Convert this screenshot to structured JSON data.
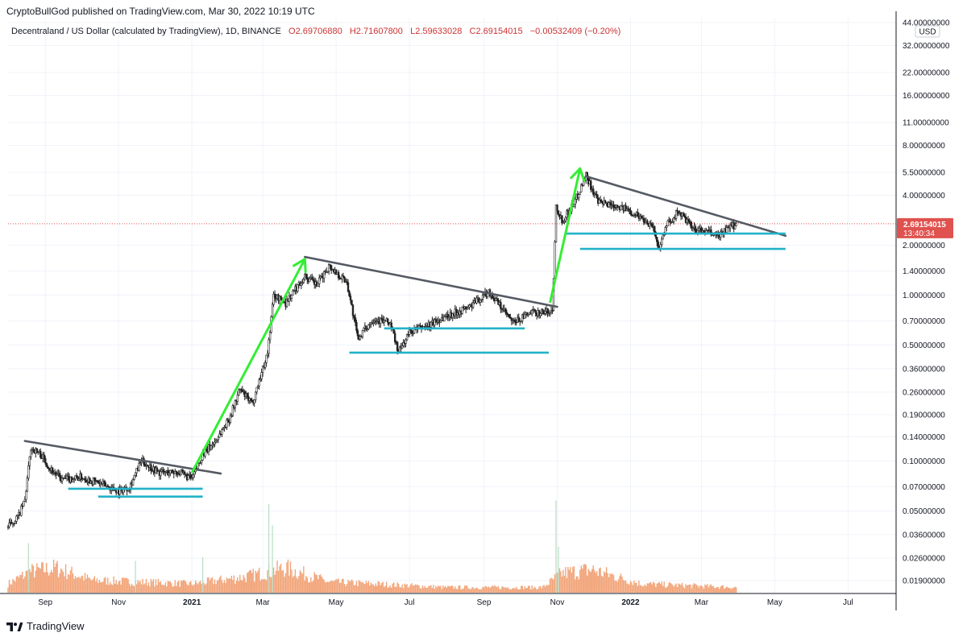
{
  "header": {
    "publisher": "CryptoBullGod published on TradingView.com, Mar 30, 2022 10:19 UTC"
  },
  "legend": {
    "symbol": "Decentraland / US Dollar (calculated by TradingView), 1D, BINANCE",
    "open": "O2.69706880",
    "high": "H2.71607800",
    "low": "L2.59633028",
    "close": "C2.69154015",
    "change": "−0.00532409 (−0.20%)"
  },
  "footer": {
    "brand": "TradingView"
  },
  "colors": {
    "candle": "#222222",
    "trendline": "#555a63",
    "support": "#22b2c9",
    "arrow": "#33ee33",
    "volume": "#f2a57a",
    "price_tag": "#e0524f",
    "price_line": "#e0524f"
  },
  "icons": {
    "logo": "tradingview-logo-icon"
  },
  "chart_data": {
    "type": "candlestick",
    "scale": "log",
    "currency": "USD",
    "last_price_label": "2.69154015",
    "countdown": "13:40:34",
    "y_ticks": [
      {
        "value": 44,
        "label": "44.00000000"
      },
      {
        "value": 32,
        "label": "32.00000000"
      },
      {
        "value": 22,
        "label": "22.00000000"
      },
      {
        "value": 16,
        "label": "16.00000000"
      },
      {
        "value": 11,
        "label": "11.00000000"
      },
      {
        "value": 8,
        "label": "8.00000000"
      },
      {
        "value": 5.5,
        "label": "5.50000000"
      },
      {
        "value": 4,
        "label": "4.00000000"
      },
      {
        "value": 2,
        "label": "2.00000000"
      },
      {
        "value": 1.4,
        "label": "1.40000000"
      },
      {
        "value": 1,
        "label": "1.00000000"
      },
      {
        "value": 0.7,
        "label": "0.70000000"
      },
      {
        "value": 0.5,
        "label": "0.50000000"
      },
      {
        "value": 0.36,
        "label": "0.36000000"
      },
      {
        "value": 0.26,
        "label": "0.26000000"
      },
      {
        "value": 0.19,
        "label": "0.19000000"
      },
      {
        "value": 0.14,
        "label": "0.14000000"
      },
      {
        "value": 0.1,
        "label": "0.10000000"
      },
      {
        "value": 0.07,
        "label": "0.07000000"
      },
      {
        "value": 0.05,
        "label": "0.05000000"
      },
      {
        "value": 0.036,
        "label": "0.03600000"
      },
      {
        "value": 0.026,
        "label": "0.02600000"
      },
      {
        "value": 0.019,
        "label": "0.01900000"
      }
    ],
    "x_ticks": [
      {
        "date": "2020-09-01",
        "label": "Sep",
        "bold": false
      },
      {
        "date": "2020-11-01",
        "label": "Nov",
        "bold": false
      },
      {
        "date": "2021-01-01",
        "label": "2021",
        "bold": true
      },
      {
        "date": "2021-03-01",
        "label": "Mar",
        "bold": false
      },
      {
        "date": "2021-05-01",
        "label": "May",
        "bold": false
      },
      {
        "date": "2021-07-01",
        "label": "Jul",
        "bold": false
      },
      {
        "date": "2021-09-01",
        "label": "Sep",
        "bold": false
      },
      {
        "date": "2021-11-01",
        "label": "Nov",
        "bold": false
      },
      {
        "date": "2022-01-01",
        "label": "2022",
        "bold": true
      },
      {
        "date": "2022-03-01",
        "label": "Mar",
        "bold": false
      },
      {
        "date": "2022-05-01",
        "label": "May",
        "bold": false
      },
      {
        "date": "2022-07-01",
        "label": "Jul",
        "bold": false
      }
    ],
    "x_range": [
      "2020-08-01",
      "2022-08-10"
    ],
    "price_path": [
      [
        "2020-08-01",
        0.04
      ],
      [
        "2020-08-10",
        0.047
      ],
      [
        "2020-08-15",
        0.058
      ],
      [
        "2020-08-20",
        0.12
      ],
      [
        "2020-08-28",
        0.11
      ],
      [
        "2020-09-05",
        0.09
      ],
      [
        "2020-09-15",
        0.077
      ],
      [
        "2020-10-01",
        0.08
      ],
      [
        "2020-10-15",
        0.074
      ],
      [
        "2020-11-01",
        0.066
      ],
      [
        "2020-11-10",
        0.07
      ],
      [
        "2020-11-20",
        0.1
      ],
      [
        "2020-12-05",
        0.085
      ],
      [
        "2020-12-20",
        0.086
      ],
      [
        "2021-01-01",
        0.078
      ],
      [
        "2021-01-10",
        0.11
      ],
      [
        "2021-01-20",
        0.13
      ],
      [
        "2021-02-01",
        0.18
      ],
      [
        "2021-02-10",
        0.27
      ],
      [
        "2021-02-20",
        0.22
      ],
      [
        "2021-03-05",
        0.45
      ],
      [
        "2021-03-10",
        1.0
      ],
      [
        "2021-03-20",
        0.9
      ],
      [
        "2021-04-05",
        1.3
      ],
      [
        "2021-04-15",
        1.15
      ],
      [
        "2021-04-25",
        1.5
      ],
      [
        "2021-05-10",
        1.2
      ],
      [
        "2021-05-19",
        0.55
      ],
      [
        "2021-06-01",
        0.72
      ],
      [
        "2021-06-15",
        0.68
      ],
      [
        "2021-06-22",
        0.45
      ],
      [
        "2021-07-01",
        0.6
      ],
      [
        "2021-07-15",
        0.65
      ],
      [
        "2021-08-01",
        0.75
      ],
      [
        "2021-08-20",
        0.85
      ],
      [
        "2021-09-05",
        1.05
      ],
      [
        "2021-09-15",
        0.85
      ],
      [
        "2021-09-25",
        0.68
      ],
      [
        "2021-10-10",
        0.78
      ],
      [
        "2021-10-28",
        0.8
      ],
      [
        "2021-10-31",
        3.5
      ],
      [
        "2021-11-05",
        2.8
      ],
      [
        "2021-11-15",
        3.6
      ],
      [
        "2021-11-25",
        5.3
      ],
      [
        "2021-12-05",
        3.6
      ],
      [
        "2021-12-20",
        3.5
      ],
      [
        "2022-01-05",
        3.1
      ],
      [
        "2022-01-20",
        2.6
      ],
      [
        "2022-01-24",
        1.9
      ],
      [
        "2022-02-01",
        2.7
      ],
      [
        "2022-02-10",
        3.2
      ],
      [
        "2022-02-22",
        2.5
      ],
      [
        "2022-03-05",
        2.4
      ],
      [
        "2022-03-15",
        2.3
      ],
      [
        "2022-03-30",
        2.69
      ]
    ],
    "volume_path": [
      [
        "2020-08-01",
        0.25
      ],
      [
        "2020-08-20",
        0.6
      ],
      [
        "2020-09-10",
        0.7
      ],
      [
        "2020-10-10",
        0.35
      ],
      [
        "2020-11-20",
        0.3
      ],
      [
        "2021-01-01",
        0.25
      ],
      [
        "2021-02-15",
        0.45
      ],
      [
        "2021-03-20",
        0.7
      ],
      [
        "2021-04-25",
        0.3
      ],
      [
        "2021-06-01",
        0.25
      ],
      [
        "2021-08-01",
        0.15
      ],
      [
        "2021-10-20",
        0.15
      ],
      [
        "2021-11-05",
        0.55
      ],
      [
        "2021-11-30",
        0.65
      ],
      [
        "2022-01-10",
        0.25
      ],
      [
        "2022-03-30",
        0.15
      ]
    ],
    "volume_spikes": [
      [
        "2020-08-18",
        1.4
      ],
      [
        "2020-11-15",
        0.9
      ],
      [
        "2021-01-10",
        1.0
      ],
      [
        "2021-03-09",
        1.9
      ],
      [
        "2021-03-06",
        2.5
      ],
      [
        "2021-10-31",
        2.6
      ],
      [
        "2021-11-02",
        1.3
      ]
    ],
    "trendlines": [
      {
        "from": [
          "2020-08-15",
          0.132
        ],
        "to": [
          "2021-01-25",
          0.084
        ]
      },
      {
        "from": [
          "2021-04-05",
          1.7
        ],
        "to": [
          "2021-11-01",
          0.85
        ]
      },
      {
        "from": [
          "2021-11-25",
          5.2
        ],
        "to": [
          "2022-05-10",
          2.28
        ]
      }
    ],
    "support_lines": [
      {
        "from": [
          "2020-09-20",
          0.068
        ],
        "to": [
          "2021-01-10",
          0.068
        ]
      },
      {
        "from": [
          "2020-10-15",
          0.061
        ],
        "to": [
          "2021-01-10",
          0.061
        ]
      },
      {
        "from": [
          "2021-05-12",
          0.45
        ],
        "to": [
          "2021-10-25",
          0.45
        ]
      },
      {
        "from": [
          "2021-06-10",
          0.63
        ],
        "to": [
          "2021-10-05",
          0.63
        ]
      },
      {
        "from": [
          "2021-11-07",
          2.35
        ],
        "to": [
          "2022-05-10",
          2.35
        ]
      },
      {
        "from": [
          "2021-11-20",
          1.9
        ],
        "to": [
          "2022-05-10",
          1.9
        ]
      }
    ],
    "arrows": [
      {
        "from": [
          "2021-01-01",
          0.085
        ],
        "to": [
          "2021-04-05",
          1.65
        ]
      },
      {
        "from": [
          "2021-10-26",
          0.9
        ],
        "to": [
          "2021-11-20",
          5.8
        ]
      }
    ]
  }
}
